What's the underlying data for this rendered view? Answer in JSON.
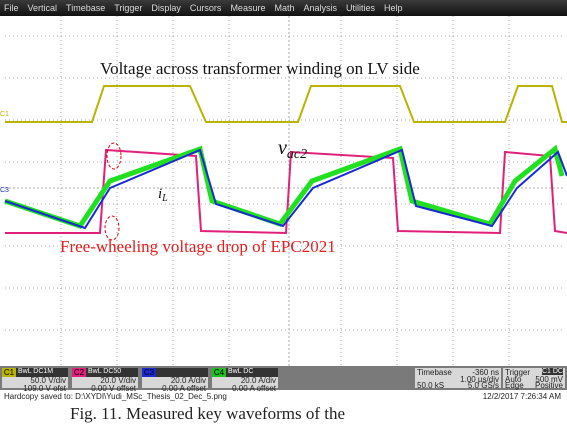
{
  "menu": [
    "File",
    "Vertical",
    "Timebase",
    "Trigger",
    "Display",
    "Cursors",
    "Measure",
    "Math",
    "Analysis",
    "Utilities",
    "Help"
  ],
  "screen": {
    "annotations": {
      "voltage": "Voltage across transformer winding on LV side",
      "vac2": {
        "main": "v",
        "sub": "ac2"
      },
      "il": {
        "main": "i",
        "sub": "L"
      },
      "freewheel": "Free-wheeling voltage drop of EPC2021"
    },
    "markers": [
      "C1",
      "C3"
    ]
  },
  "channels": [
    {
      "id": "C1",
      "mode": "BwL DC1M",
      "scale": "50.0 V/div",
      "offset": "109.0 V ofst"
    },
    {
      "id": "C2",
      "mode": "BwL DC50",
      "scale": "20.0 V/div",
      "offset": "0.00 V offset"
    },
    {
      "id": "C3",
      "mode": "",
      "scale": "20.0 A/div",
      "offset": "0.00 A offset"
    },
    {
      "id": "C4",
      "mode": "BwL DC",
      "scale": "20.0 A/div",
      "offset": "0.00 A offset"
    }
  ],
  "timebase": {
    "label": "Timebase",
    "delay": "-360 ns",
    "div": "1.00 µs/div",
    "samples": "50.0 kS",
    "rate": "5.0 GS/s"
  },
  "trigger": {
    "label": "Trigger",
    "source": "C1 DC",
    "mode": "Auto",
    "level": "500 mV",
    "type": "Edge",
    "slope": "Positive"
  },
  "footer": {
    "saved": "Hardcopy saved to: D:\\XYDI\\Yudi_MSc_Thesis_02_Dec_5.png",
    "date": "12/2/2017 7:26:34 AM"
  },
  "caption": "Fig. 11. Measured key waveforms of the"
}
